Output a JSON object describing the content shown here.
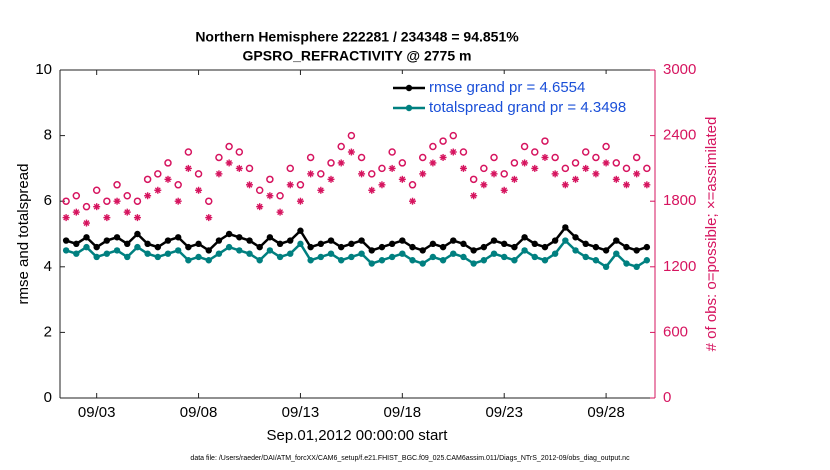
{
  "chart_data": {
    "type": "line",
    "title": "Northern Hemisphere 222281 / 234348 = 94.851%",
    "subtitle": "GPSRO_REFRACTIVITY @ 2775 m",
    "xlabel": "Sep.01,2012 00:00:00 start",
    "ylabel": "rmse and totalspread",
    "y2label": "# of obs: o=possible; ×=assimilated",
    "footnote": "data file: /Users/raeder/DAI/ATM_forcXX/CAM6_setup/f.e21.FHIST_BGC.f09_025.CAM6assim.011/Diags_NTrS_2012-09/obs_diag_output.nc",
    "legend": "upper right",
    "xlim": [
      1.2,
      30.4
    ],
    "xticks": [
      {
        "value": 3,
        "label": "09/03"
      },
      {
        "value": 8,
        "label": "09/08"
      },
      {
        "value": 13,
        "label": "09/13"
      },
      {
        "value": 18,
        "label": "09/18"
      },
      {
        "value": 23,
        "label": "09/23"
      },
      {
        "value": 28,
        "label": "09/28"
      }
    ],
    "ylim": [
      0,
      10
    ],
    "yticks": [
      0,
      2,
      4,
      6,
      8,
      10
    ],
    "y2lim": [
      0,
      3000
    ],
    "y2ticks": [
      0,
      600,
      1200,
      1800,
      2400,
      3000
    ],
    "y2color": "#d6145f",
    "x": [
      1.5,
      2,
      2.5,
      3,
      3.5,
      4,
      4.5,
      5,
      5.5,
      6,
      6.5,
      7,
      7.5,
      8,
      8.5,
      9,
      9.5,
      10,
      10.5,
      11,
      11.5,
      12,
      12.5,
      13,
      13.5,
      14,
      14.5,
      15,
      15.5,
      16,
      16.5,
      17,
      17.5,
      18,
      18.5,
      19,
      19.5,
      20,
      20.5,
      21,
      21.5,
      22,
      22.5,
      23,
      23.5,
      24,
      24.5,
      25,
      25.5,
      26,
      26.5,
      27,
      27.5,
      28,
      28.5,
      29,
      29.5,
      30
    ],
    "series": [
      {
        "name": "rmse grand pr = 4.6554",
        "color": "#000000",
        "marker": "dot",
        "line": true,
        "values": [
          4.8,
          4.7,
          4.9,
          4.6,
          4.8,
          4.9,
          4.7,
          5.0,
          4.7,
          4.6,
          4.8,
          4.9,
          4.6,
          4.7,
          4.5,
          4.8,
          5.0,
          4.9,
          4.8,
          4.6,
          4.9,
          4.7,
          4.8,
          5.1,
          4.6,
          4.7,
          4.8,
          4.6,
          4.7,
          4.8,
          4.5,
          4.6,
          4.7,
          4.8,
          4.6,
          4.5,
          4.7,
          4.6,
          4.8,
          4.7,
          4.5,
          4.6,
          4.8,
          4.7,
          4.6,
          4.9,
          4.7,
          4.6,
          4.8,
          5.2,
          4.9,
          4.7,
          4.6,
          4.5,
          4.8,
          4.6,
          4.5,
          4.6
        ]
      },
      {
        "name": "totalspread grand pr = 4.3498",
        "color": "#008080",
        "marker": "dot",
        "line": true,
        "values": [
          4.5,
          4.4,
          4.6,
          4.3,
          4.4,
          4.5,
          4.3,
          4.6,
          4.4,
          4.3,
          4.4,
          4.5,
          4.2,
          4.3,
          4.2,
          4.4,
          4.6,
          4.5,
          4.4,
          4.2,
          4.5,
          4.3,
          4.4,
          4.7,
          4.2,
          4.3,
          4.4,
          4.2,
          4.3,
          4.4,
          4.1,
          4.2,
          4.3,
          4.4,
          4.2,
          4.1,
          4.3,
          4.2,
          4.4,
          4.3,
          4.1,
          4.2,
          4.4,
          4.3,
          4.2,
          4.5,
          4.3,
          4.2,
          4.4,
          4.8,
          4.5,
          4.3,
          4.2,
          4.0,
          4.4,
          4.1,
          4.0,
          4.2
        ]
      },
      {
        "color": "#d6145f",
        "marker": "circle",
        "line": false,
        "axis": "y2",
        "values": [
          1800,
          1850,
          1750,
          1900,
          1800,
          1950,
          1850,
          1800,
          2000,
          2050,
          2150,
          1950,
          2250,
          2050,
          1800,
          2200,
          2300,
          2250,
          2100,
          1900,
          2000,
          1850,
          2100,
          1950,
          2200,
          2050,
          2150,
          2300,
          2400,
          2200,
          2050,
          2100,
          2250,
          2150,
          1950,
          2200,
          2300,
          2350,
          2400,
          2250,
          2000,
          2100,
          2200,
          2050,
          2150,
          2300,
          2250,
          2350,
          2200,
          2100,
          2150,
          2250,
          2200,
          2300,
          2150,
          2100,
          2200,
          2100
        ]
      },
      {
        "color": "#d6145f",
        "marker": "asterisk",
        "line": false,
        "axis": "y2",
        "values": [
          1650,
          1700,
          1600,
          1750,
          1650,
          1800,
          1700,
          1650,
          1850,
          1900,
          2000,
          1800,
          2100,
          1900,
          1650,
          2050,
          2150,
          2100,
          1950,
          1750,
          1850,
          1700,
          1950,
          1800,
          2050,
          1900,
          2000,
          2150,
          2250,
          2050,
          1900,
          1950,
          2100,
          2000,
          1800,
          2050,
          2150,
          2200,
          2250,
          2100,
          1850,
          1950,
          2050,
          1900,
          2000,
          2150,
          2100,
          2200,
          2050,
          1950,
          2000,
          2100,
          2050,
          2150,
          2000,
          1950,
          2050,
          1950
        ]
      }
    ]
  }
}
